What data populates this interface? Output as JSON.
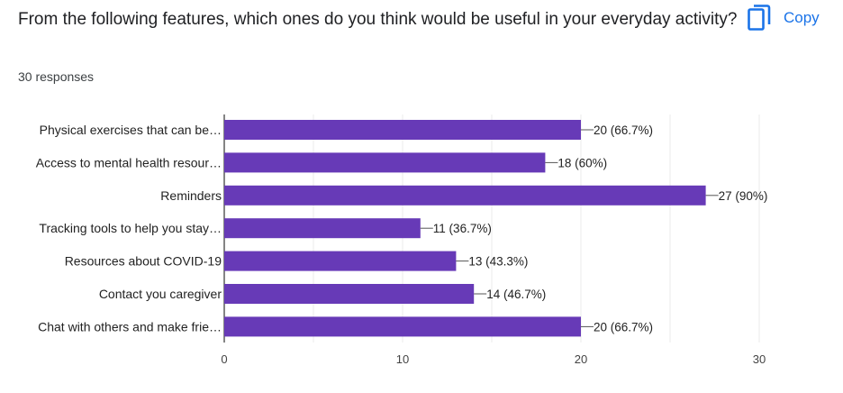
{
  "header": {
    "question": "From the following features, which ones do you think would be useful in your everyday activity?",
    "responses": "30 responses",
    "copy_label": "Copy",
    "copy_icon": "copy-icon"
  },
  "colors": {
    "bar": "#673ab7",
    "accent": "#1a73e8",
    "grid": "#ebebeb",
    "axis": "#333333"
  },
  "chart_data": {
    "type": "bar",
    "orientation": "horizontal",
    "categories": [
      "Physical exercises that can be…",
      "Access to mental health resour…",
      "Reminders",
      "Tracking tools to help you stay…",
      "Resources about COVID-19",
      "Contact you caregiver",
      "Chat with others and make frie…"
    ],
    "values": [
      20,
      18,
      27,
      11,
      13,
      14,
      20
    ],
    "data_labels": [
      "20 (66.7%)",
      "18 (60%)",
      "27 (90%)",
      "11 (36.7%)",
      "13 (43.3%)",
      "14 (46.7%)",
      "20 (66.7%)"
    ],
    "xlim": [
      0,
      30
    ],
    "xticks": [
      0,
      10,
      20,
      30
    ],
    "xtick_labels": [
      "0",
      "10",
      "20",
      "30"
    ],
    "grid": true,
    "legend": "none"
  }
}
